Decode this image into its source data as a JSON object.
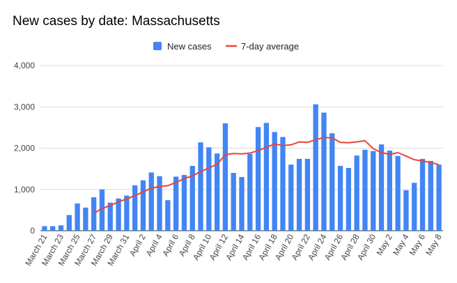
{
  "chart_data": {
    "type": "bar",
    "title": "New cases by date: Massachusetts",
    "xlabel": "",
    "ylabel": "",
    "ylim": [
      0,
      4000
    ],
    "yticks": [
      "0",
      "1,000",
      "2,000",
      "3,000",
      "4,000"
    ],
    "grid": true,
    "legend_position": "top-center",
    "colors": {
      "bars": "#4285f4",
      "line": "#ea4335"
    },
    "categories": [
      "March 21",
      "March 22",
      "March 23",
      "March 24",
      "March 25",
      "March 26",
      "March 27",
      "March 28",
      "March 29",
      "March 30",
      "March 31",
      "April 1",
      "April 2",
      "April 3",
      "April 4",
      "April 5",
      "April 6",
      "April 7",
      "April 8",
      "April 9",
      "April 10",
      "April 11",
      "April 12",
      "April 13",
      "April 14",
      "April 15",
      "April 16",
      "April 17",
      "April 18",
      "April 19",
      "April 20",
      "April 21",
      "April 22",
      "April 23",
      "April 24",
      "April 25",
      "April 26",
      "April 27",
      "April 28",
      "April 29",
      "April 30",
      "May 1",
      "May 2",
      "May 3",
      "May 4",
      "May 5",
      "May 6",
      "May 7",
      "May 8"
    ],
    "shown_tick_labels": [
      "March 21",
      "March 23",
      "March 25",
      "March 27",
      "March 29",
      "March 31",
      "April 2",
      "April 4",
      "April 6",
      "April 8",
      "April 10",
      "April 12",
      "April 14",
      "April 16",
      "April 18",
      "April 20",
      "April 22",
      "April 24",
      "April 26",
      "April 28",
      "April 30",
      "May 2",
      "May 4",
      "May 6",
      "May 8"
    ],
    "series": [
      {
        "name": "New cases",
        "type": "bar",
        "values": [
          110,
          110,
          130,
          380,
          660,
          560,
          810,
          1000,
          680,
          780,
          850,
          1100,
          1220,
          1410,
          1320,
          740,
          1310,
          1350,
          1570,
          2140,
          2020,
          1870,
          2600,
          1400,
          1300,
          1860,
          2510,
          2610,
          2390,
          2270,
          1600,
          1740,
          1740,
          3060,
          2860,
          2360,
          1570,
          1520,
          1820,
          1960,
          1930,
          2090,
          1940,
          1810,
          980,
          1160,
          1740,
          1690,
          1600
        ]
      },
      {
        "name": "7-day average",
        "type": "line",
        "values": [
          null,
          null,
          null,
          null,
          null,
          null,
          420,
          540,
          610,
          700,
          770,
          850,
          940,
          1030,
          1070,
          1090,
          1170,
          1260,
          1330,
          1430,
          1520,
          1610,
          1840,
          1870,
          1860,
          1880,
          1940,
          2020,
          2100,
          2060,
          2080,
          2150,
          2140,
          2200,
          2260,
          2250,
          2140,
          2130,
          2150,
          2180,
          1990,
          1890,
          1850,
          1890,
          1810,
          1720,
          1690,
          1650,
          1600
        ]
      }
    ]
  }
}
